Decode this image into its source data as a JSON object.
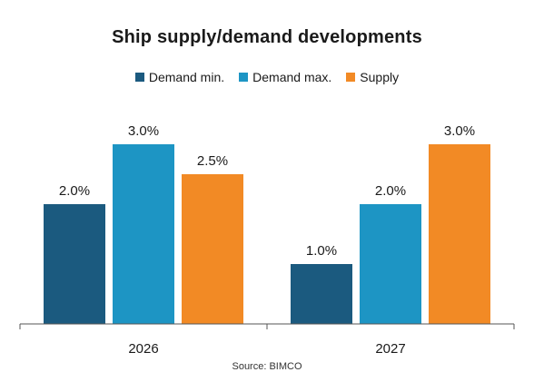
{
  "colors": {
    "demand_min": "#1b5a7f",
    "demand_max": "#1d95c4",
    "supply": "#f28a25",
    "axis": "#555555",
    "text": "#1a1a1a"
  },
  "chart_data": {
    "type": "bar",
    "title": "Ship supply/demand  developments",
    "xlabel": "",
    "ylabel": "",
    "categories": [
      "2026",
      "2027"
    ],
    "series": [
      {
        "name": "Demand min.",
        "values": [
          2.0,
          1.0
        ],
        "labels": [
          "2.0%",
          "1.0%"
        ]
      },
      {
        "name": "Demand max.",
        "values": [
          3.0,
          2.0
        ],
        "labels": [
          "3.0%",
          "2.0%"
        ]
      },
      {
        "name": "Supply",
        "values": [
          2.5,
          3.0
        ],
        "labels": [
          "2.5%",
          "3.0%"
        ]
      }
    ],
    "ylim": [
      0,
      3.0
    ],
    "grid": false,
    "legend_position": "top-center",
    "source": "Source: BIMCO"
  }
}
